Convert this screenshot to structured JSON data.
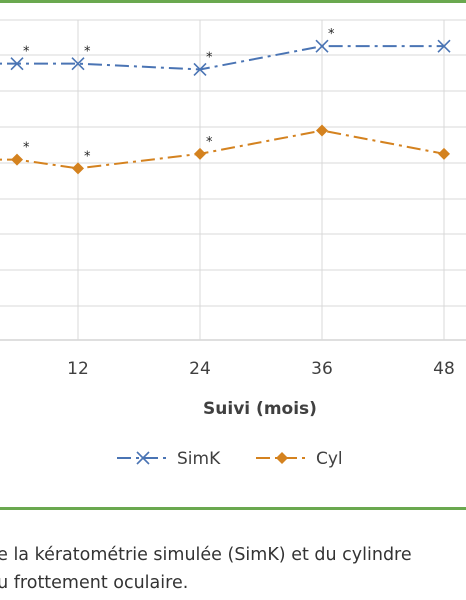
{
  "chart_data": {
    "type": "line",
    "xlabel": "Suivi (mois)",
    "categories": [
      "12",
      "24",
      "36",
      "48"
    ],
    "x": [
      6,
      12,
      24,
      36,
      48
    ],
    "series": [
      {
        "name": "SimK",
        "color": "#4a74b4",
        "marker": "x",
        "line_style": "dash-dot",
        "values": [
          47.5,
          47.5,
          47.3,
          48.1,
          48.1
        ],
        "significance": [
          "*",
          "*",
          "*",
          "*",
          ""
        ]
      },
      {
        "name": "Cyl",
        "color": "#d4821f",
        "marker": "diamond",
        "line_style": "dash-dot",
        "values": [
          44.2,
          43.9,
          44.4,
          45.2,
          44.4
        ],
        "significance": [
          "*",
          "*",
          "*",
          "",
          ""
        ]
      }
    ],
    "grid": true,
    "legend_position": "bottom"
  },
  "caption": {
    "line1": "de la kératométrie simulée (SimK) et du cylindre",
    "line2": "du frottement oculaire."
  }
}
